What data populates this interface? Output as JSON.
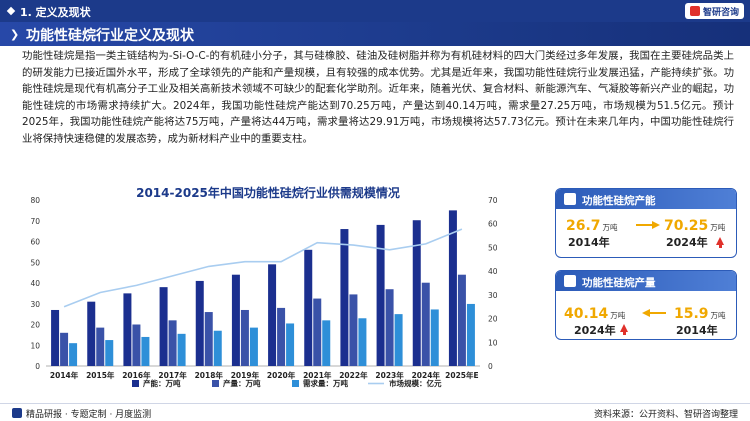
{
  "header": {
    "section": "1. 定义及现状",
    "brand": "智研咨询",
    "title": "功能性硅烷行业定义及现状"
  },
  "paragraph": "功能性硅烷是指一类主链结构为-Si-O-C-的有机硅小分子，其与硅橡胶、硅油及硅树脂并称为有机硅材料的四大门类经过多年发展，我国在主要硅烷品类上的研发能力已接近国外水平，形成了全球领先的产能和产量规模，且有较强的成本优势。尤其是近年来，我国功能性硅烷行业发展迅猛，产能持续扩张。功能性硅烷是现代有机高分子工业及相关高新技术领域不可缺少的配套化学助剂。近年来，随着光伏、复合材料、新能源汽车、气凝胶等新兴产业的崛起，功能性硅烷的市场需求持续扩大。2024年，我国功能性硅烷产能达到70.25万吨，产量达到40.14万吨，需求量27.25万吨，市场规模为51.5亿元。预计2025年，我国功能性硅烷产能将达75万吨，产量将达44万吨，需求量将达29.91万吨，市场规模将达57.73亿元。预计在未来几年内，中国功能性硅烷行业将保持快速稳健的发展态势，成为新材料产业中的重要支柱。",
  "colors": {
    "capacity": "#1b2f8f",
    "output": "#3a52a8",
    "demand": "#2e8fd8",
    "market": "#a9cdf0",
    "accent": "#e0312b",
    "highlight": "#f0a800"
  },
  "chart_data": {
    "type": "bar",
    "title": "2014-2025年中国功能性硅烷行业供需规模情况",
    "categories": [
      "2014年",
      "2015年",
      "2016年",
      "2017年",
      "2018年",
      "2019年",
      "2020年",
      "2021年",
      "2022年",
      "2023年",
      "2024年",
      "2025年E"
    ],
    "series": [
      {
        "name": "产能：万吨",
        "type": "bar",
        "axis": "left",
        "values": [
          27,
          31,
          35,
          38,
          41,
          44,
          49,
          56,
          66,
          68,
          70.25,
          75
        ]
      },
      {
        "name": "产量：万吨",
        "type": "bar",
        "axis": "left",
        "values": [
          16,
          18.5,
          20,
          22,
          26,
          27,
          28,
          32.5,
          34.5,
          37,
          40.14,
          44
        ]
      },
      {
        "name": "需求量：万吨",
        "type": "bar",
        "axis": "left",
        "values": [
          11,
          12.5,
          14,
          15.5,
          17,
          18.5,
          20.5,
          22,
          23,
          25,
          27.25,
          29.91
        ]
      },
      {
        "name": "市场规模：亿元",
        "type": "line",
        "axis": "right",
        "values": [
          25,
          31,
          34,
          38,
          42,
          44,
          44,
          52,
          51,
          49,
          51.5,
          57.73
        ]
      }
    ],
    "ylim_left": [
      0,
      80
    ],
    "ylim_right": [
      0,
      70
    ],
    "yticks_left": [
      "0",
      "10",
      "20",
      "30",
      "40",
      "50",
      "60",
      "70",
      "80"
    ],
    "yticks_right": [
      "0",
      "10",
      "20",
      "30",
      "40",
      "50",
      "60",
      "70"
    ],
    "grid": false,
    "legend": "bottom"
  },
  "cards": [
    {
      "title": "功能性硅烷产能",
      "left_value": "26.7",
      "left_unit": "万吨",
      "left_year": "2014年",
      "right_value": "70.25",
      "right_unit": "万吨",
      "right_year": "2024年"
    },
    {
      "title": "功能性硅烷产量",
      "left_value": "40.14",
      "left_unit": "万吨",
      "left_year": "2024年",
      "right_value": "15.9",
      "right_unit": "万吨",
      "right_year": "2014年"
    }
  ],
  "footer": {
    "left": "精品研报 · 专题定制 · 月度监测",
    "right": "资料来源：公开资料、智研咨询整理"
  }
}
